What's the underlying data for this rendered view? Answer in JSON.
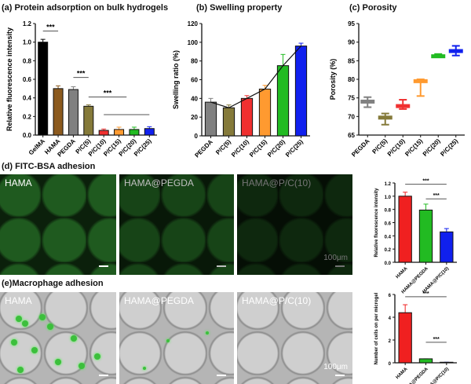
{
  "titles": {
    "a": "(a) Protein adsorption on bulk hydrogels",
    "b": "(b) Swelling property",
    "c": "(c) Porosity",
    "d": "(d) FITC-BSA adhesion",
    "e": "(e)Macrophage adhesion"
  },
  "images": {
    "d": [
      "HAMA",
      "HAMA@PEGDA",
      "HAMA@P/C(10)"
    ],
    "e": [
      "HAMA",
      "HAMA@PEGDA",
      "HAMA@P/C(10)"
    ],
    "scale": "100μm"
  },
  "chart_data": [
    {
      "id": "a",
      "type": "bar",
      "categories": [
        "GelMA",
        "HAMA",
        "PEGDA",
        "P/C(5)",
        "P/C(10)",
        "P/C(15)",
        "P/C(20)",
        "P/C(25)"
      ],
      "values": [
        1.0,
        0.5,
        0.49,
        0.31,
        0.05,
        0.06,
        0.06,
        0.07
      ],
      "errors": [
        0.03,
        0.03,
        0.03,
        0.015,
        0.015,
        0.025,
        0.025,
        0.02
      ],
      "colors": [
        "#000000",
        "#8c5a1e",
        "#808080",
        "#857a3a",
        "#f03030",
        "#ff9a30",
        "#22bb22",
        "#1020ee"
      ],
      "ylabel": "Relative fluorescence intensity",
      "ylim": [
        0,
        1.2
      ],
      "yticks": [
        "0.0",
        "0.2",
        "0.4",
        "0.6",
        "0.8",
        "1.0",
        "1.2"
      ],
      "significance": [
        "***",
        "***",
        "***"
      ]
    },
    {
      "id": "b",
      "type": "bar",
      "categories": [
        "PEGDA",
        "P/C(5)",
        "P/C(10)",
        "P/C(15)",
        "P/C(20)",
        "P/C(25)"
      ],
      "values": [
        36,
        30,
        40,
        50,
        75,
        96
      ],
      "errors": [
        4,
        3,
        3,
        4,
        12,
        3
      ],
      "colors": [
        "#808080",
        "#857a3a",
        "#f03030",
        "#ff9a30",
        "#22bb22",
        "#1020ee"
      ],
      "ylabel": "Swelling ratio (%)",
      "ylim": [
        0,
        120
      ],
      "yticks": [
        "0",
        "20",
        "40",
        "60",
        "80",
        "100",
        "120"
      ]
    },
    {
      "id": "c",
      "type": "box",
      "categories": [
        "PEGDA",
        "P/C(5)",
        "P/C(10)",
        "P/C(15)",
        "P/C(20)",
        "P/C(25)"
      ],
      "mean": [
        74,
        69.7,
        72.8,
        79.5,
        86.2,
        87.6
      ],
      "min": [
        72.5,
        67.8,
        72,
        75.5,
        86,
        86.4
      ],
      "max": [
        75.2,
        70.8,
        74.5,
        80,
        86.8,
        89
      ],
      "colors": [
        "#808080",
        "#857a3a",
        "#f03030",
        "#ff9a30",
        "#22bb22",
        "#1020ee"
      ],
      "ylabel": "Porosity (%)",
      "ylim": [
        65,
        95
      ],
      "yticks": [
        "65",
        "70",
        "75",
        "80",
        "85",
        "90",
        "95"
      ]
    },
    {
      "id": "d",
      "type": "bar",
      "categories": [
        "HAMA",
        "HAMA@PEGDA",
        "HAMA@P/C(10)"
      ],
      "values": [
        1.0,
        0.79,
        0.46
      ],
      "errors": [
        0.06,
        0.09,
        0.05
      ],
      "colors": [
        "#f02020",
        "#22bb22",
        "#1020ee"
      ],
      "ylabel": "Relative fluorescence intensity",
      "ylim": [
        0,
        1.2
      ],
      "yticks": [
        "0.0",
        "0.2",
        "0.4",
        "0.6",
        "0.8",
        "1.0",
        "1.2"
      ],
      "significance": [
        "***",
        "***"
      ]
    },
    {
      "id": "e",
      "type": "bar",
      "categories": [
        "HAMA",
        "HAMA@PEGDA",
        "HAMA@P/C(10)"
      ],
      "values": [
        4.4,
        0.35,
        0.05
      ],
      "errors": [
        0.7,
        0,
        0
      ],
      "colors": [
        "#f02020",
        "#22bb22",
        "#1020ee"
      ],
      "ylabel": "Number of cells on per microgel",
      "ylim": [
        0,
        6
      ],
      "yticks": [
        "0",
        "2",
        "4",
        "6"
      ],
      "significance": [
        "***",
        "***"
      ]
    }
  ]
}
